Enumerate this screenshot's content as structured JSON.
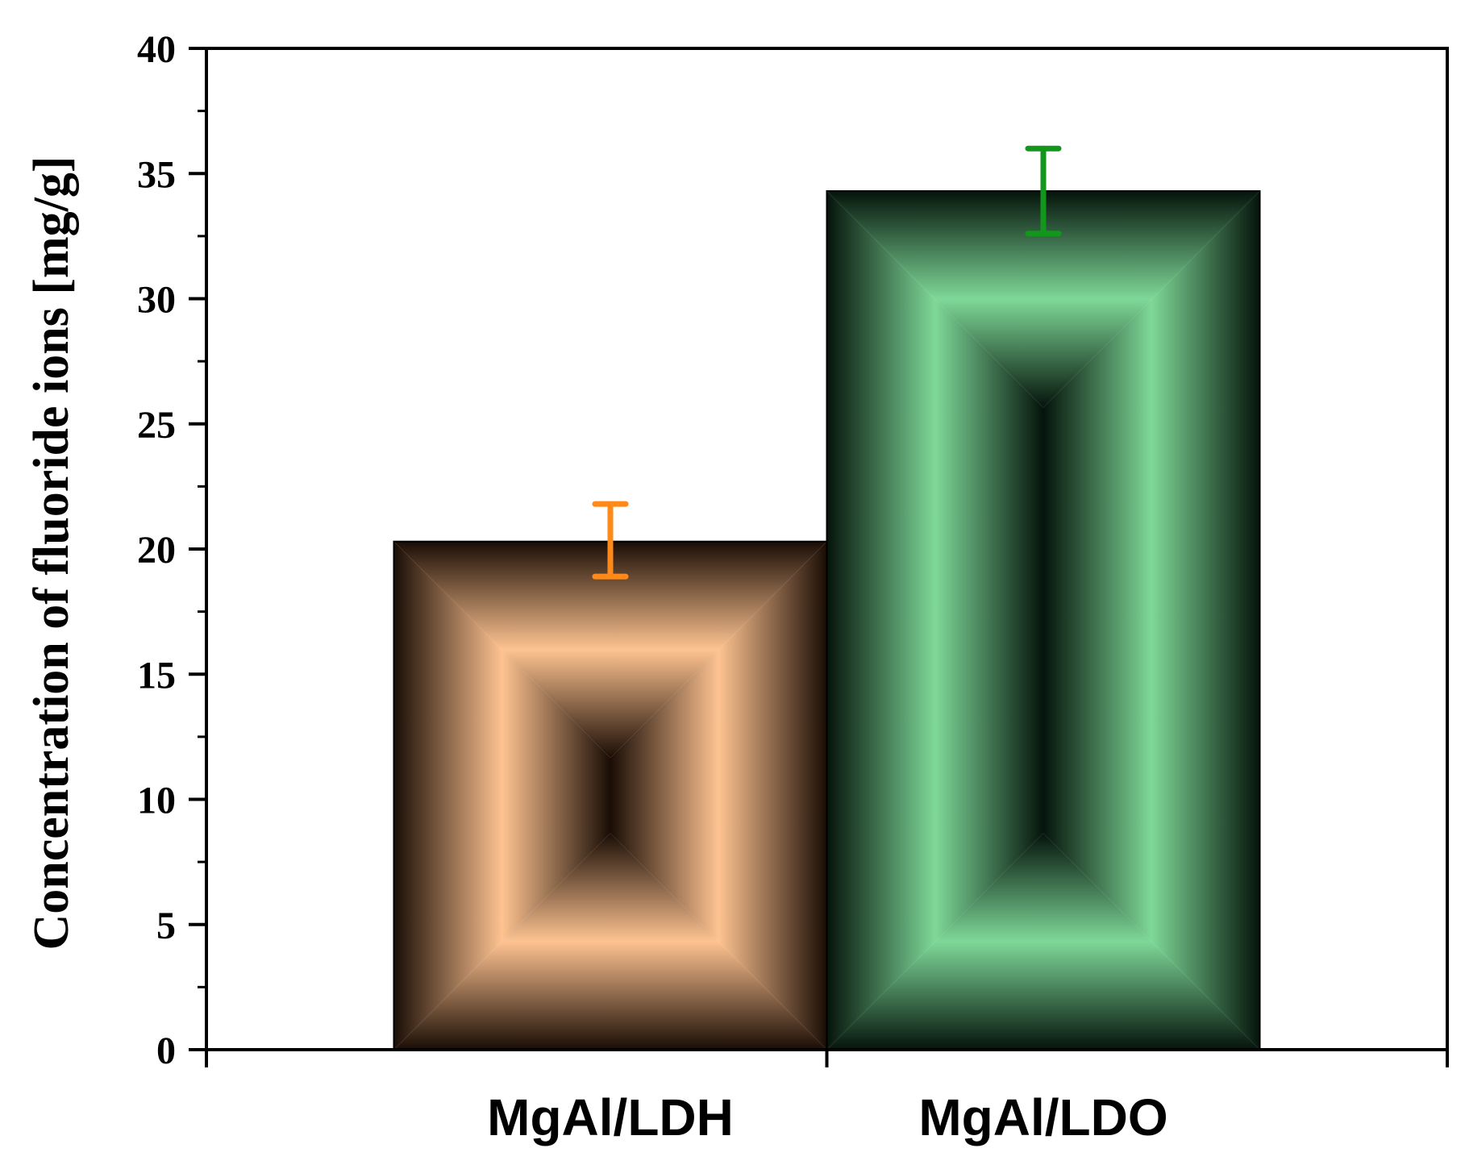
{
  "chart_data": {
    "type": "bar",
    "title": "",
    "xlabel": "",
    "ylabel": "Concentration of fluoride ions [mg/g]",
    "categories": [
      "MgAl/LDH",
      "MgAl/LDO"
    ],
    "values": [
      20.3,
      34.3
    ],
    "error_high": [
      21.8,
      36.0
    ],
    "error_low": [
      18.9,
      32.6
    ],
    "bar_colors": [
      {
        "center": "#fec391",
        "edge": "#1a0d05"
      },
      {
        "center": "#7ed898",
        "edge": "#05140b"
      }
    ],
    "error_colors": [
      "#ff8a1a",
      "#12961c"
    ],
    "ylim": [
      0,
      40
    ],
    "yticks": [
      0,
      5,
      10,
      15,
      20,
      25,
      30,
      35,
      40
    ],
    "ytick_labels": [
      "0",
      "5",
      "10",
      "15",
      "20",
      "25",
      "30",
      "35",
      "40"
    ],
    "grid": false,
    "legend": "none"
  }
}
